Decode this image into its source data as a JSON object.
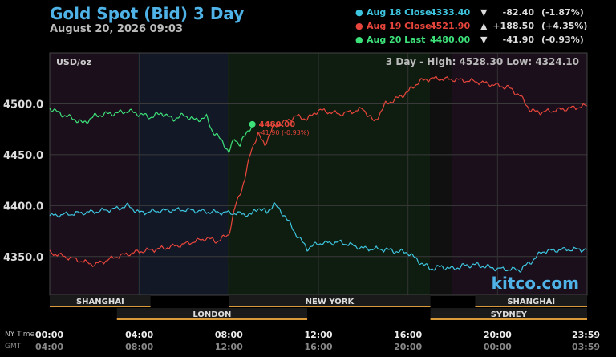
{
  "header": {
    "title": "Gold Spot (Bid) 3 Day",
    "date": "August 20, 2026 09:03"
  },
  "legend": [
    {
      "name": "Aug 18 Close",
      "value": "4333.40",
      "arrow": "▼",
      "change": "-82.40",
      "pct": "(-1.87%)",
      "color": "#3ec6e0"
    },
    {
      "name": "Aug 19 Close",
      "value": "4521.90",
      "arrow": "▲",
      "change": "+188.50",
      "pct": "(+4.35%)",
      "color": "#e8463c"
    },
    {
      "name": "Aug 20 Last",
      "value": "4480.00",
      "arrow": "▼",
      "change": "-41.90",
      "pct": "(-0.93%)",
      "color": "#3ee27a"
    }
  ],
  "plot": {
    "unit_label": "USD/oz",
    "stats_label": "3 Day - High: 4528.30  Low: 4324.10",
    "watermark": "kitco.com",
    "last_label": "4480.00",
    "last_change_label": "-41.90 (-0.93%)"
  },
  "sessions": [
    {
      "name": "SHANGHAI",
      "start_hour": 0,
      "end_hour": 4.5,
      "row": 1
    },
    {
      "name": "NEW YORK",
      "start_hour": 8,
      "end_hour": 17,
      "row": 1
    },
    {
      "name": "SHANGHAI",
      "start_hour": 19,
      "end_hour": 24,
      "row": 1
    },
    {
      "name": "LONDON",
      "start_hour": 3,
      "end_hour": 11.5,
      "row": 2
    },
    {
      "name": "SYDNEY",
      "start_hour": 17,
      "end_hour": 24,
      "row": 2
    }
  ],
  "time_axis": {
    "ny_label": "NY Time",
    "gmt_label": "GMT",
    "ny_ticks": [
      "00:00",
      "04:00",
      "08:00",
      "12:00",
      "16:00",
      "20:00",
      "23:59"
    ],
    "gmt_ticks": [
      "04:00",
      "08:00",
      "12:00",
      "16:00",
      "20:00",
      "00:00",
      "03:59"
    ]
  },
  "chart_data": {
    "type": "line",
    "x_unit": "NY hour of day",
    "ylim": [
      4312,
      4550
    ],
    "yticks": [
      4350,
      4400,
      4450,
      4500
    ],
    "ytick_labels": [
      "4350.0",
      "4400.0",
      "4450.0",
      "4500.0"
    ],
    "grid": true,
    "series": [
      {
        "name": "Aug 18 Close",
        "color": "#3ec6e0",
        "x": [
          0,
          1,
          2,
          3,
          3.5,
          4,
          5,
          6,
          7,
          8,
          9,
          9.3,
          9.7,
          10,
          10.5,
          11,
          11.5,
          12,
          13,
          14,
          15,
          15.5,
          16,
          16.5,
          17,
          17.5,
          18,
          18.5,
          19,
          19.5,
          20,
          21,
          21.5,
          22,
          23,
          23.99
        ],
        "y": [
          4390,
          4392,
          4394,
          4397,
          4400,
          4393,
          4395,
          4396,
          4394,
          4393,
          4391,
          4398,
          4393,
          4402,
          4390,
          4372,
          4358,
          4363,
          4364,
          4358,
          4357,
          4355,
          4354,
          4345,
          4338,
          4340,
          4338,
          4341,
          4342,
          4340,
          4338,
          4337,
          4345,
          4355,
          4357,
          4357
        ]
      },
      {
        "name": "Aug 19 Close",
        "color": "#e8463c",
        "x": [
          0,
          1,
          2,
          3,
          4,
          5,
          6,
          7,
          7.5,
          8,
          8.3,
          8.7,
          9,
          9.3,
          9.6,
          10,
          10.5,
          11,
          11.5,
          12,
          13,
          14,
          14.5,
          15,
          15.5,
          16,
          16.5,
          17,
          18,
          19,
          20,
          20.5,
          21,
          21.5,
          22,
          23,
          23.99
        ],
        "y": [
          4354,
          4348,
          4342,
          4350,
          4355,
          4358,
          4362,
          4368,
          4365,
          4372,
          4400,
          4425,
          4455,
          4470,
          4460,
          4478,
          4482,
          4488,
          4485,
          4494,
          4490,
          4495,
          4482,
          4500,
          4505,
          4512,
          4522,
          4525,
          4524,
          4522,
          4518,
          4516,
          4508,
          4493,
          4492,
          4495,
          4498
        ]
      },
      {
        "name": "Aug 20 Last",
        "color": "#3ee27a",
        "x": [
          0,
          0.5,
          1,
          1.5,
          2,
          2.5,
          3,
          3.5,
          4,
          4.5,
          5,
          5.5,
          6,
          6.5,
          7,
          7.25,
          7.5,
          7.75,
          8,
          8.25,
          8.5,
          8.75,
          9.05
        ],
        "y": [
          4496,
          4490,
          4486,
          4481,
          4488,
          4490,
          4491,
          4493,
          4490,
          4487,
          4491,
          4485,
          4489,
          4484,
          4487,
          4474,
          4468,
          4462,
          4452,
          4466,
          4460,
          4470,
          4480
        ]
      }
    ]
  }
}
